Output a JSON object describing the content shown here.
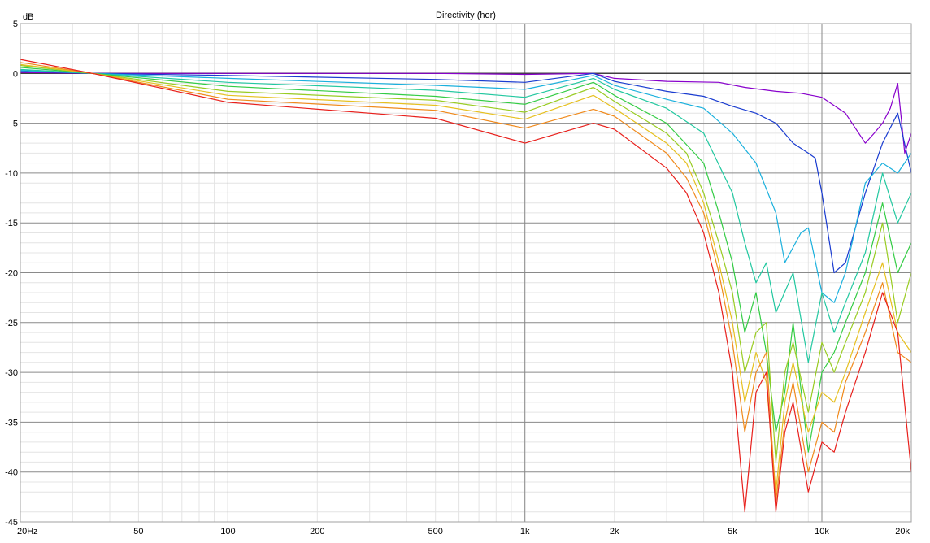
{
  "chart_data": {
    "type": "line",
    "title": "Directivity (hor)",
    "ylabel": "dB",
    "xlabel": "",
    "x_scale": "log",
    "xlim": [
      20,
      20000
    ],
    "ylim": [
      -45,
      5
    ],
    "grid": true,
    "legend": "none",
    "x_ticks": [
      {
        "value": 20,
        "label": "20Hz"
      },
      {
        "value": 50,
        "label": "50"
      },
      {
        "value": 100,
        "label": "100"
      },
      {
        "value": 200,
        "label": "200"
      },
      {
        "value": 500,
        "label": "500"
      },
      {
        "value": 1000,
        "label": "1k"
      },
      {
        "value": 2000,
        "label": "2k"
      },
      {
        "value": 5000,
        "label": "5k"
      },
      {
        "value": 10000,
        "label": "10k"
      },
      {
        "value": 20000,
        "label": "20k"
      }
    ],
    "y_ticks": [
      {
        "value": 5,
        "label": "5"
      },
      {
        "value": 0,
        "label": "0"
      },
      {
        "value": -5,
        "label": "-5"
      },
      {
        "value": -10,
        "label": "-10"
      },
      {
        "value": -15,
        "label": "-15"
      },
      {
        "value": -20,
        "label": "-20"
      },
      {
        "value": -25,
        "label": "-25"
      },
      {
        "value": -30,
        "label": "-30"
      },
      {
        "value": -35,
        "label": "-35"
      },
      {
        "value": -40,
        "label": "-40"
      },
      {
        "value": -45,
        "label": "-45"
      }
    ],
    "series": [
      {
        "color": "#8800cc",
        "x": [
          20,
          35,
          100,
          500,
          1000,
          1700,
          2000,
          3000,
          4500,
          5500,
          7000,
          8500,
          10000,
          12000,
          14000,
          15000,
          16000,
          17000,
          18000,
          19000,
          20000
        ],
        "y": [
          0.1,
          0,
          0,
          0,
          -0.1,
          0,
          -0.5,
          -0.8,
          -0.9,
          -1.4,
          -1.8,
          -2.0,
          -2.4,
          -4.0,
          -7.0,
          -6.0,
          -5.0,
          -3.5,
          -1.0,
          -8.0,
          -6.0
        ]
      },
      {
        "color": "#1a3cd0",
        "x": [
          20,
          35,
          100,
          500,
          1000,
          1700,
          2000,
          3000,
          4000,
          5000,
          6000,
          7000,
          8000,
          9000,
          9500,
          10000,
          11000,
          12000,
          14000,
          16000,
          18000,
          20000
        ],
        "y": [
          0.2,
          0,
          -0.2,
          -0.6,
          -0.9,
          0,
          -0.8,
          -1.8,
          -2.3,
          -3.3,
          -4.0,
          -5.0,
          -7.0,
          -8.0,
          -8.5,
          -12.0,
          -20.0,
          -19.0,
          -12.0,
          -7.0,
          -4.0,
          -10.0
        ]
      },
      {
        "color": "#1ab0dd",
        "x": [
          20,
          35,
          100,
          500,
          1000,
          1700,
          2000,
          3000,
          4000,
          5000,
          6000,
          7000,
          7500,
          8500,
          9000,
          10000,
          11000,
          12000,
          14000,
          16000,
          18000,
          20000
        ],
        "y": [
          0.3,
          0,
          -0.5,
          -1.2,
          -1.6,
          -0.2,
          -1.2,
          -2.6,
          -3.5,
          -6.0,
          -9.0,
          -14.0,
          -19.0,
          -16.0,
          -15.5,
          -22.0,
          -23.0,
          -20.0,
          -11.0,
          -9.0,
          -10.0,
          -8.0
        ]
      },
      {
        "color": "#22c8a0",
        "x": [
          20,
          35,
          100,
          500,
          1000,
          1700,
          2000,
          3000,
          4000,
          5000,
          5500,
          6000,
          6500,
          7000,
          8000,
          9000,
          10000,
          11000,
          12000,
          14000,
          16000,
          18000,
          20000
        ],
        "y": [
          0.4,
          0,
          -0.9,
          -1.7,
          -2.4,
          -0.5,
          -1.6,
          -3.5,
          -6.0,
          -12.0,
          -17.0,
          -21.0,
          -19.0,
          -24.0,
          -20.0,
          -29.0,
          -22.0,
          -26.0,
          -23.0,
          -18.0,
          -10.0,
          -15.0,
          -12.0
        ]
      },
      {
        "color": "#33cc44",
        "x": [
          20,
          35,
          100,
          500,
          1000,
          1700,
          2000,
          3000,
          4000,
          4500,
          5000,
          5500,
          6000,
          6500,
          7000,
          7500,
          8000,
          9000,
          10000,
          11000,
          12000,
          14000,
          16000,
          18000,
          20000
        ],
        "y": [
          0.6,
          0,
          -1.3,
          -2.3,
          -3.1,
          -0.9,
          -2.2,
          -5.0,
          -9.0,
          -14.0,
          -19.0,
          -26.0,
          -22.0,
          -28.0,
          -36.0,
          -32.0,
          -25.0,
          -38.0,
          -30.0,
          -28.0,
          -25.0,
          -20.0,
          -13.0,
          -20.0,
          -17.0
        ]
      },
      {
        "color": "#99cc22",
        "x": [
          20,
          35,
          100,
          500,
          1000,
          1700,
          2000,
          3000,
          3500,
          4000,
          4500,
          5000,
          5500,
          6000,
          6500,
          7000,
          7500,
          8000,
          9000,
          10000,
          11000,
          12000,
          14000,
          16000,
          18000,
          20000
        ],
        "y": [
          0.8,
          0,
          -1.8,
          -2.7,
          -3.9,
          -1.4,
          -2.8,
          -6.0,
          -8.0,
          -12.0,
          -17.0,
          -22.0,
          -30.0,
          -26.0,
          -25.0,
          -39.0,
          -30.0,
          -27.0,
          -34.0,
          -27.0,
          -30.0,
          -27.0,
          -22.0,
          -15.0,
          -25.0,
          -20.0
        ]
      },
      {
        "color": "#e6c020",
        "x": [
          20,
          35,
          100,
          500,
          1000,
          1700,
          2000,
          3000,
          3500,
          4000,
          4500,
          5000,
          5500,
          6000,
          6500,
          7000,
          7500,
          8000,
          9000,
          10000,
          11000,
          12000,
          14000,
          16000,
          18000,
          20000
        ],
        "y": [
          0.9,
          0,
          -2.2,
          -3.2,
          -4.6,
          -2.2,
          -3.5,
          -7.0,
          -9.0,
          -13.0,
          -19.0,
          -25.0,
          -33.0,
          -28.0,
          -31.0,
          -42.0,
          -33.0,
          -29.0,
          -36.0,
          -32.0,
          -33.0,
          -30.0,
          -24.0,
          -19.0,
          -26.0,
          -28.0
        ]
      },
      {
        "color": "#f08a1c",
        "x": [
          20,
          35,
          100,
          500,
          1000,
          1700,
          2000,
          3000,
          3500,
          4000,
          4500,
          5000,
          5500,
          6000,
          6500,
          7000,
          7500,
          8000,
          9000,
          10000,
          11000,
          12000,
          14000,
          16000,
          18000,
          20000
        ],
        "y": [
          1.1,
          0,
          -2.6,
          -3.7,
          -5.5,
          -3.6,
          -4.3,
          -8.0,
          -10.5,
          -14.0,
          -20.0,
          -27.0,
          -36.0,
          -30.0,
          -28.0,
          -43.0,
          -35.0,
          -31.0,
          -40.0,
          -35.0,
          -36.0,
          -31.0,
          -26.0,
          -21.0,
          -28.0,
          -29.0
        ]
      },
      {
        "color": "#e8201c",
        "x": [
          20,
          35,
          100,
          500,
          1000,
          1700,
          2000,
          3000,
          3500,
          4000,
          4500,
          5000,
          5500,
          6000,
          6500,
          7000,
          7500,
          8000,
          9000,
          10000,
          11000,
          12000,
          14000,
          16000,
          18000,
          20000
        ],
        "y": [
          1.4,
          0,
          -2.9,
          -4.5,
          -7.0,
          -5.0,
          -5.6,
          -9.5,
          -12.0,
          -16.0,
          -22.0,
          -30.0,
          -44.0,
          -32.0,
          -30.0,
          -44.0,
          -36.0,
          -33.0,
          -42.0,
          -37.0,
          -38.0,
          -34.0,
          -28.0,
          -22.0,
          -26.0,
          -40.0
        ]
      }
    ]
  }
}
